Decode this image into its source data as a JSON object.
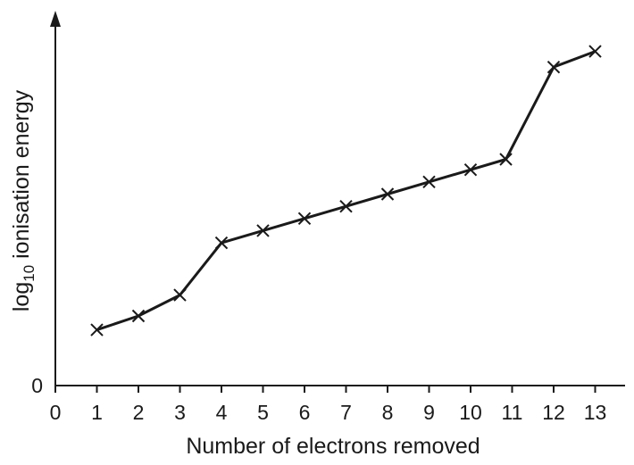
{
  "chart_data": {
    "type": "line",
    "xlabel": "Number of electrons removed",
    "ylabel": {
      "prefix": "log",
      "subscript": "10",
      "suffix": " ionisation energy"
    },
    "x_ticks": [
      "0",
      "1",
      "2",
      "3",
      "4",
      "5",
      "6",
      "7",
      "8",
      "9",
      "10",
      "11",
      "12",
      "13"
    ],
    "y_ticks": [
      "0"
    ],
    "xlim": [
      0,
      14
    ],
    "ylim": [
      0,
      1
    ],
    "marker": "x",
    "grid": false,
    "series": [
      {
        "x": [
          1,
          2,
          3,
          4,
          5,
          6,
          7,
          8,
          9,
          10,
          10.85,
          12,
          13
        ],
        "values": [
          0.16,
          0.2,
          0.26,
          0.41,
          0.445,
          0.48,
          0.515,
          0.55,
          0.585,
          0.62,
          0.65,
          0.915,
          0.96
        ]
      }
    ],
    "colors": {
      "line": "#1a1a1a",
      "background": "#ffffff"
    }
  }
}
